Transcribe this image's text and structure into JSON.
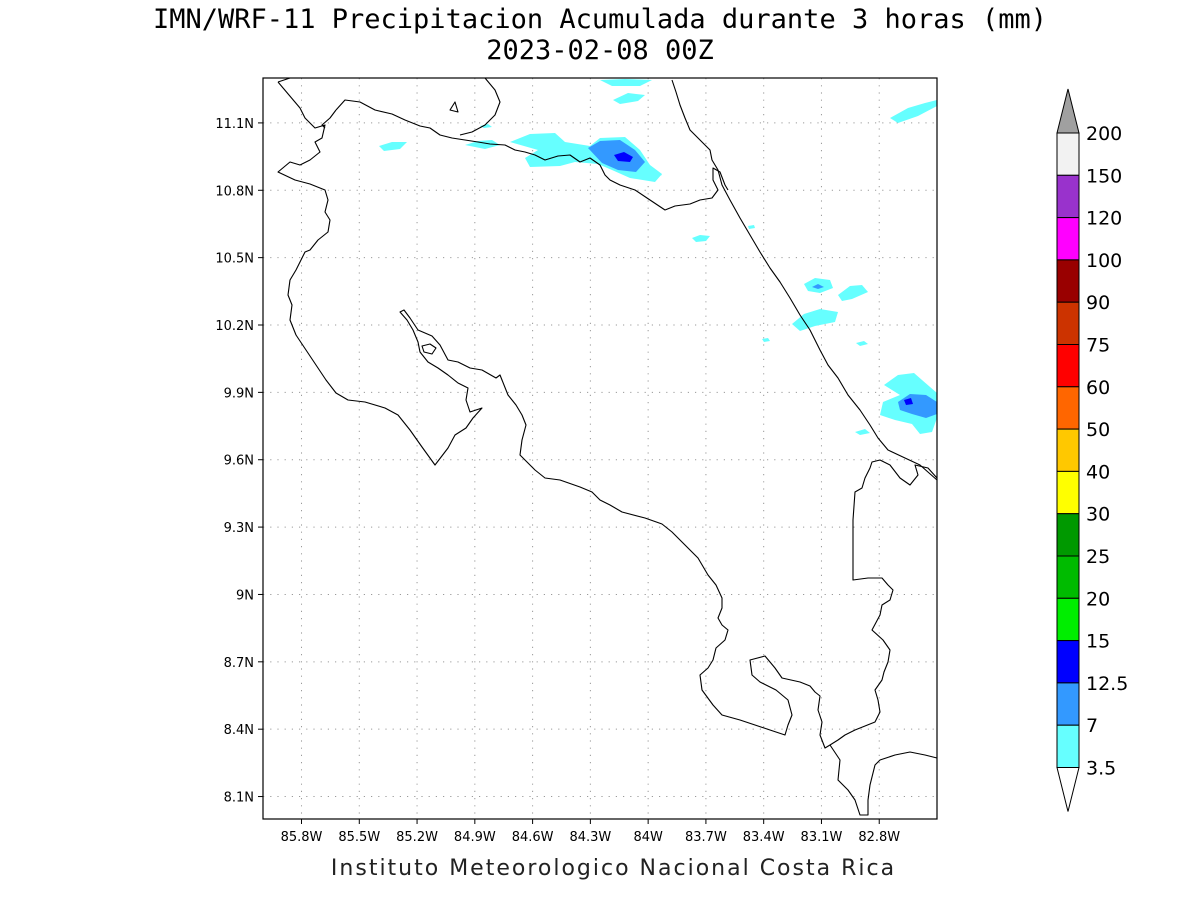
{
  "title": {
    "line1": "IMN/WRF-11 Precipitacion Acumulada durante 3 horas (mm)",
    "line2": "2023-02-08 00Z"
  },
  "footer": "Instituto Meteorologico Nacional Costa Rica",
  "map": {
    "lon_range": [
      -86.0,
      -82.5
    ],
    "lat_range": [
      8.0,
      11.3
    ],
    "lon_ticks": [
      {
        "value": -85.8,
        "label": "85.8W"
      },
      {
        "value": -85.5,
        "label": "85.5W"
      },
      {
        "value": -85.2,
        "label": "85.2W"
      },
      {
        "value": -84.9,
        "label": "84.9W"
      },
      {
        "value": -84.6,
        "label": "84.6W"
      },
      {
        "value": -84.3,
        "label": "84.3W"
      },
      {
        "value": -84.0,
        "label": "84W"
      },
      {
        "value": -83.7,
        "label": "83.7W"
      },
      {
        "value": -83.4,
        "label": "83.4W"
      },
      {
        "value": -83.1,
        "label": "83.1W"
      },
      {
        "value": -82.8,
        "label": "82.8W"
      }
    ],
    "lat_ticks": [
      {
        "value": 11.1,
        "label": "11.1N"
      },
      {
        "value": 10.8,
        "label": "10.8N"
      },
      {
        "value": 10.5,
        "label": "10.5N"
      },
      {
        "value": 10.2,
        "label": "10.2N"
      },
      {
        "value": 9.9,
        "label": "9.9N"
      },
      {
        "value": 9.6,
        "label": "9.6N"
      },
      {
        "value": 9.3,
        "label": "9.3N"
      },
      {
        "value": 9.0,
        "label": "9N"
      },
      {
        "value": 8.7,
        "label": "8.7N"
      },
      {
        "value": 8.4,
        "label": "8.4N"
      },
      {
        "value": 8.1,
        "label": "8.1N"
      }
    ],
    "coast_color": "#000000",
    "grid": true
  },
  "legend": {
    "top_color": "#a0a0a0",
    "bottom_color": "#ffffff",
    "levels": [
      {
        "label": "200",
        "color": "#f2f2f2"
      },
      {
        "label": "150",
        "color": "#9932cc"
      },
      {
        "label": "120",
        "color": "#ff00ff"
      },
      {
        "label": "100",
        "color": "#990000"
      },
      {
        "label": "90",
        "color": "#cc3300"
      },
      {
        "label": "75",
        "color": "#ff0000"
      },
      {
        "label": "60",
        "color": "#ff6600"
      },
      {
        "label": "50",
        "color": "#ffc800"
      },
      {
        "label": "40",
        "color": "#ffff00"
      },
      {
        "label": "30",
        "color": "#009900"
      },
      {
        "label": "25",
        "color": "#00bb00"
      },
      {
        "label": "20",
        "color": "#00ee00"
      },
      {
        "label": "15",
        "color": "#0000ff"
      },
      {
        "label": "12.5",
        "color": "#3399ff"
      },
      {
        "label": "7",
        "color": "#66ffff"
      },
      {
        "label": "3.5",
        "color": null
      }
    ]
  },
  "precip_colors": {
    "light": "#66ffff",
    "medium": "#3399ff",
    "heavy": "#0000ff"
  }
}
